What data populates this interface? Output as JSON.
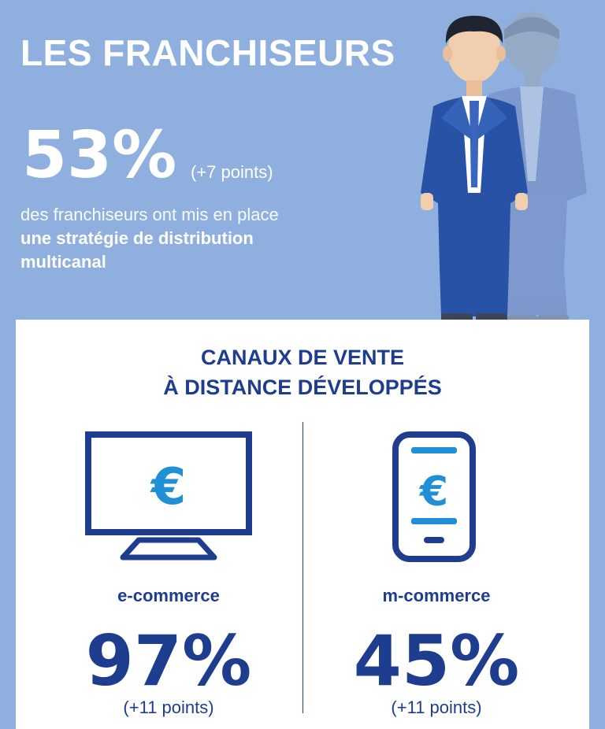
{
  "header": {
    "title": "LES FRANCHISEURS",
    "percent": "53%",
    "delta": "(+7 points)",
    "desc_light": "des franchiseurs ont mis en place",
    "desc_bold_1": "une stratégie de distribution",
    "desc_bold_2": "multicanal"
  },
  "panel": {
    "title_line1": "CANAUX DE VENTE",
    "title_line2": "À DISTANCE DÉVELOPPÉS",
    "items": [
      {
        "label": "e-commerce",
        "percent": "97%",
        "delta": "(+11 points)",
        "icon": "monitor-euro-icon"
      },
      {
        "label": "m-commerce",
        "percent": "45%",
        "delta": "(+11 points)",
        "icon": "smartphone-euro-icon"
      }
    ]
  },
  "colors": {
    "background": "#8fb0de",
    "navy": "#1e3d8f",
    "icon_blue": "#1f8fd6",
    "white": "#ffffff"
  }
}
